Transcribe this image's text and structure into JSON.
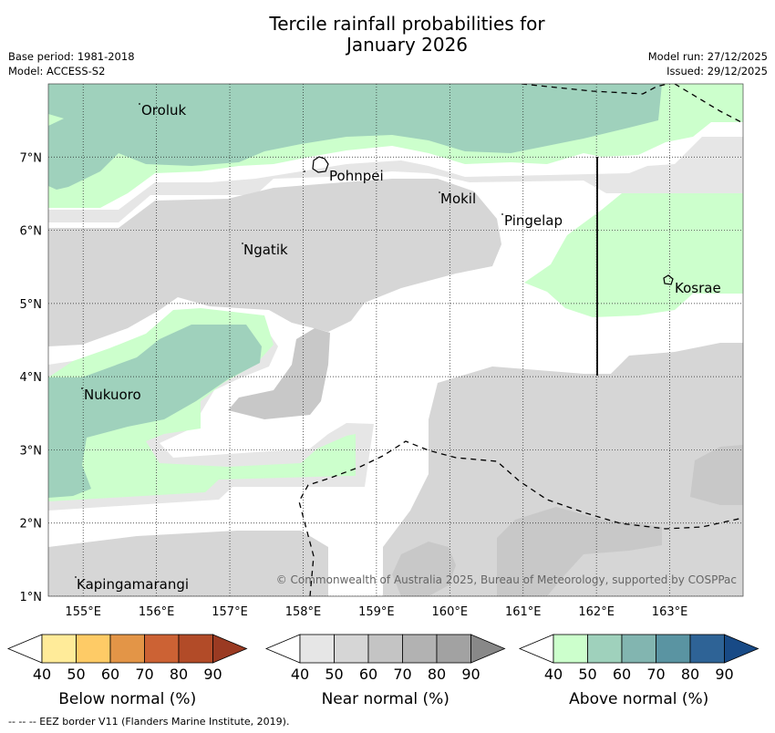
{
  "title": {
    "line1": "Tercile rainfall probabilities for",
    "line2": "January 2026"
  },
  "meta": {
    "base_period": "Base period: 1981-2018",
    "model": "Model: ACCESS-S2",
    "model_run": "Model run: 27/12/2025",
    "issued": "Issued: 29/12/2025"
  },
  "map": {
    "lon_ticks": [
      "155°E",
      "156°E",
      "157°E",
      "158°E",
      "159°E",
      "160°E",
      "161°E",
      "162°E",
      "163°E"
    ],
    "lat_ticks": [
      "7°N",
      "6°N",
      "5°N",
      "4°N",
      "3°N",
      "2°N",
      "1°N"
    ],
    "places": [
      "Oroluk",
      "Pohnpei",
      "Mokil",
      "Pingelap",
      "Ngatik",
      "Kosrae",
      "Nukuoro",
      "Kapingamarangi"
    ],
    "copyright": "© Commonwealth of Australia 2025, Bureau of Meteorology, supported by COSPPac"
  },
  "legends": [
    {
      "title": "Below normal (%)",
      "ticks": [
        "40",
        "50",
        "60",
        "70",
        "80",
        "90"
      ],
      "colors": [
        "#ffffff",
        "#ffeb99",
        "#fecb66",
        "#e39547",
        "#cc6234",
        "#b24b28",
        "#9a3a22"
      ]
    },
    {
      "title": "Near normal (%)",
      "ticks": [
        "40",
        "50",
        "60",
        "70",
        "80",
        "90"
      ],
      "colors": [
        "#ffffff",
        "#e6e6e6",
        "#d6d6d6",
        "#c4c4c4",
        "#b2b2b2",
        "#a2a2a2",
        "#888888"
      ]
    },
    {
      "title": "Above normal (%)",
      "ticks": [
        "40",
        "50",
        "60",
        "70",
        "80",
        "90"
      ],
      "colors": [
        "#ffffff",
        "#ccffcc",
        "#9fd1bc",
        "#82b5b0",
        "#5a94a2",
        "#2e6396",
        "#184a86"
      ]
    }
  ],
  "footer": "--  --  -- EEZ border V11 (Flanders Marine Institute, 2019)."
}
